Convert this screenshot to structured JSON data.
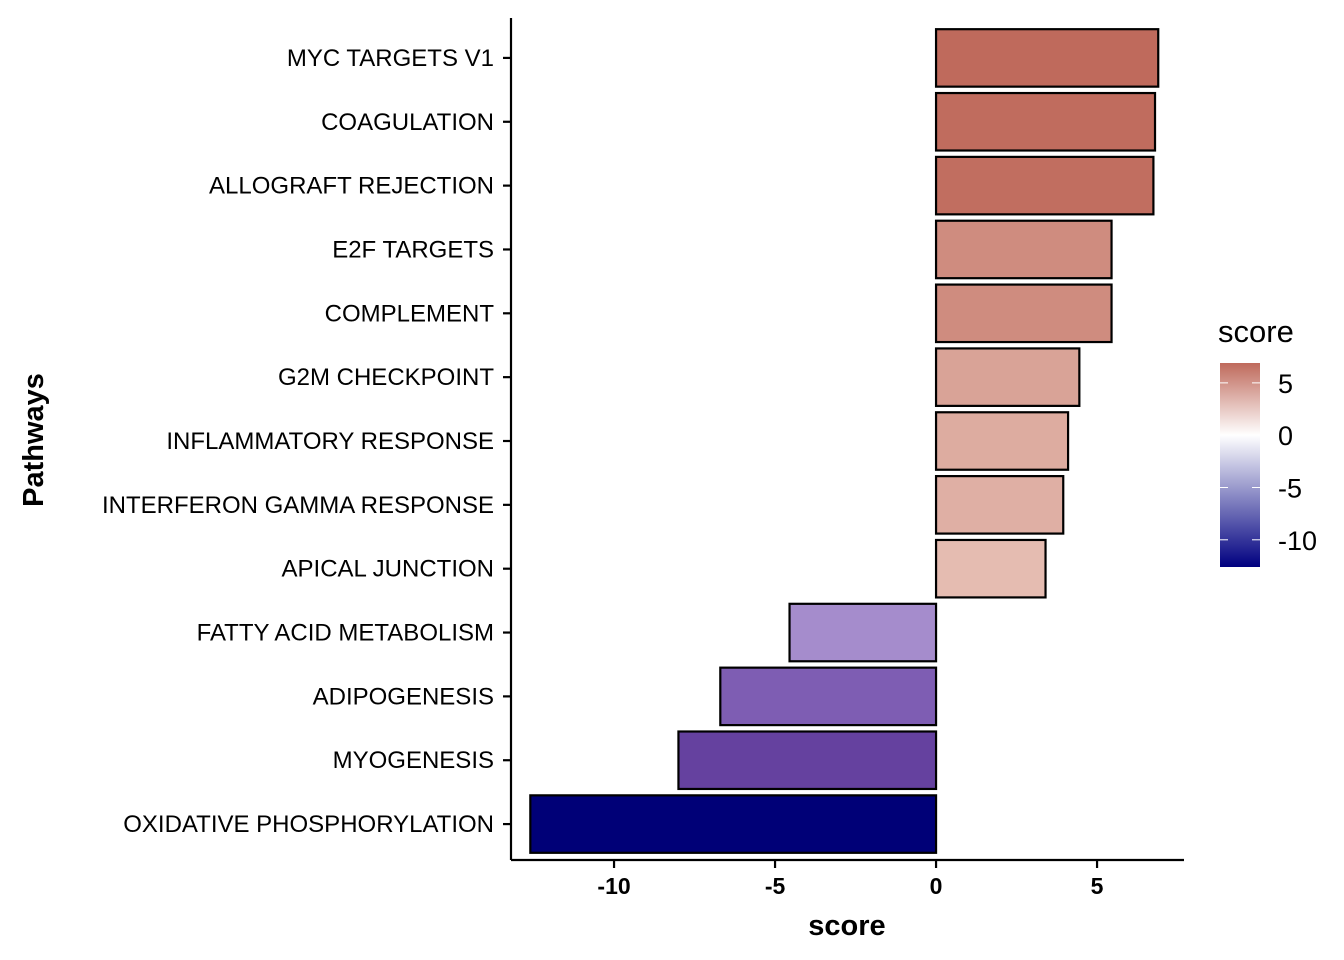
{
  "chart_data": {
    "type": "bar",
    "orientation": "horizontal",
    "categories": [
      "MYC TARGETS V1",
      "COAGULATION",
      "ALLOGRAFT REJECTION",
      "E2F TARGETS",
      "COMPLEMENT",
      "G2M CHECKPOINT",
      "INFLAMMATORY RESPONSE",
      "INTERFERON GAMMA RESPONSE",
      "APICAL JUNCTION",
      "FATTY ACID METABOLISM",
      "ADIPOGENESIS",
      "MYOGENESIS",
      "OXIDATIVE PHOSPHORYLATION"
    ],
    "values": [
      6.9,
      6.8,
      6.75,
      5.45,
      5.45,
      4.45,
      4.1,
      3.95,
      3.4,
      -4.55,
      -6.7,
      -8.0,
      -12.6
    ],
    "xlabel": "score",
    "ylabel": "Pathways",
    "xlim": [
      -13.2,
      7.7
    ],
    "xticks": [
      -10,
      -5,
      0,
      5
    ],
    "xtick_labels": [
      "-10",
      "-5",
      "0",
      "5"
    ],
    "grid": false,
    "legend": {
      "title": "score",
      "position": "right",
      "type": "gradient",
      "range": [
        -12.6,
        6.9
      ],
      "ticks": [
        5,
        0,
        -5,
        -10
      ],
      "tick_labels": [
        "5",
        "0",
        "-5",
        "-10"
      ],
      "colors": {
        "low": "#000080",
        "mid": "#ffffff",
        "high": "#b2182b"
      }
    }
  }
}
